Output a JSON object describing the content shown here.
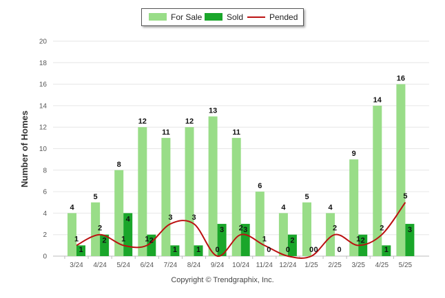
{
  "chart_data": {
    "type": "bar",
    "categories": [
      "3/24",
      "4/24",
      "5/24",
      "6/24",
      "7/24",
      "8/24",
      "9/24",
      "10/24",
      "11/24",
      "12/24",
      "1/25",
      "2/25",
      "3/25",
      "4/25",
      "5/25"
    ],
    "series": [
      {
        "name": "For Sale",
        "type": "bar",
        "color": "#99dd88",
        "values": [
          4,
          5,
          8,
          12,
          11,
          12,
          13,
          11,
          6,
          4,
          5,
          4,
          9,
          14,
          16
        ]
      },
      {
        "name": "Sold",
        "type": "bar",
        "color": "#1aa62a",
        "values": [
          1,
          2,
          4,
          2,
          1,
          1,
          3,
          3,
          0,
          2,
          0,
          0,
          2,
          1,
          3
        ]
      },
      {
        "name": "Pended",
        "type": "line",
        "color": "#bb1111",
        "values": [
          1,
          2,
          1,
          1,
          3,
          3,
          0,
          2,
          1,
          0,
          0,
          2,
          1,
          2,
          5
        ]
      }
    ],
    "ylabel": "Number of Homes",
    "ylim": [
      0,
      20
    ],
    "yticks": [
      0,
      2,
      4,
      6,
      8,
      10,
      12,
      14,
      16,
      18,
      20
    ],
    "legend_position": "top-center",
    "grid": true
  },
  "footer": {
    "copyright": "Copyright © Trendgraphix, Inc."
  }
}
